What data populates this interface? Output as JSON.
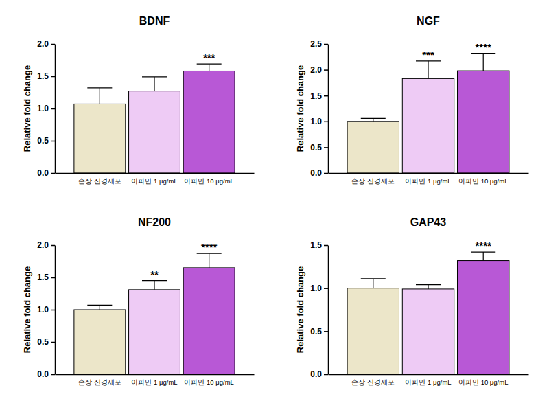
{
  "chart_data": [
    {
      "type": "bar",
      "title": "BDNF",
      "y_label": "Relative fold change",
      "categories": [
        "손상 신경세포",
        "아파민 1 μg/mL",
        "아파민 10 μg/mL"
      ],
      "values": [
        1.07,
        1.27,
        1.58
      ],
      "errors": [
        0.25,
        0.22,
        0.11
      ],
      "significance": [
        null,
        null,
        "***"
      ],
      "colors": [
        "#ece6c9",
        "#eecbf5",
        "#b858d6"
      ],
      "ylim": [
        0,
        2
      ],
      "yticks": [
        {
          "value": 0,
          "label": "0.0"
        },
        0.5,
        {
          "value": 1,
          "label": "1.0"
        },
        1.5,
        {
          "value": 2,
          "label": "2.0"
        }
      ]
    },
    {
      "type": "bar",
      "title": "NGF",
      "y_label": "Relative fold change",
      "categories": [
        "손상 신경세포",
        "아파민 1 μg/mL",
        "아파민 10 μg/mL"
      ],
      "values": [
        1.0,
        1.83,
        1.98
      ],
      "errors": [
        0.06,
        0.34,
        0.34
      ],
      "significance": [
        null,
        "***",
        "****"
      ],
      "colors": [
        "#ece6c9",
        "#eecbf5",
        "#b858d6"
      ],
      "ylim": [
        0,
        2.5
      ],
      "yticks": [
        {
          "value": 0,
          "label": "0.0"
        },
        0.5,
        {
          "value": 1,
          "label": "1.0"
        },
        1.5,
        {
          "value": 2,
          "label": "2.0"
        },
        2.5
      ]
    },
    {
      "type": "bar",
      "title": "NF200",
      "y_label": "Relative fold change",
      "categories": [
        "손상 신경세포",
        "아파민 1 μg/mL",
        "아파민 10 μg/mL"
      ],
      "values": [
        1.0,
        1.31,
        1.65
      ],
      "errors": [
        0.07,
        0.14,
        0.22
      ],
      "significance": [
        null,
        "**",
        "****"
      ],
      "colors": [
        "#ece6c9",
        "#eecbf5",
        "#b858d6"
      ],
      "ylim": [
        0,
        2
      ],
      "yticks": [
        {
          "value": 0,
          "label": "0.0"
        },
        0.5,
        {
          "value": 1,
          "label": "1.0"
        },
        1.5,
        {
          "value": 2,
          "label": "2.0"
        }
      ]
    },
    {
      "type": "bar",
      "title": "GAP43",
      "y_label": "Relative fold change",
      "categories": [
        "손상 신경세포",
        "아파민 1 μg/mL",
        "아파민 10 μg/mL"
      ],
      "values": [
        1.0,
        0.99,
        1.32
      ],
      "errors": [
        0.11,
        0.05,
        0.1
      ],
      "significance": [
        null,
        null,
        "****"
      ],
      "colors": [
        "#ece6c9",
        "#eecbf5",
        "#b858d6"
      ],
      "ylim": [
        0,
        1.5
      ],
      "yticks": [
        {
          "value": 0,
          "label": "0.0"
        },
        0.5,
        {
          "value": 1,
          "label": "1.0"
        },
        1.5
      ]
    }
  ]
}
